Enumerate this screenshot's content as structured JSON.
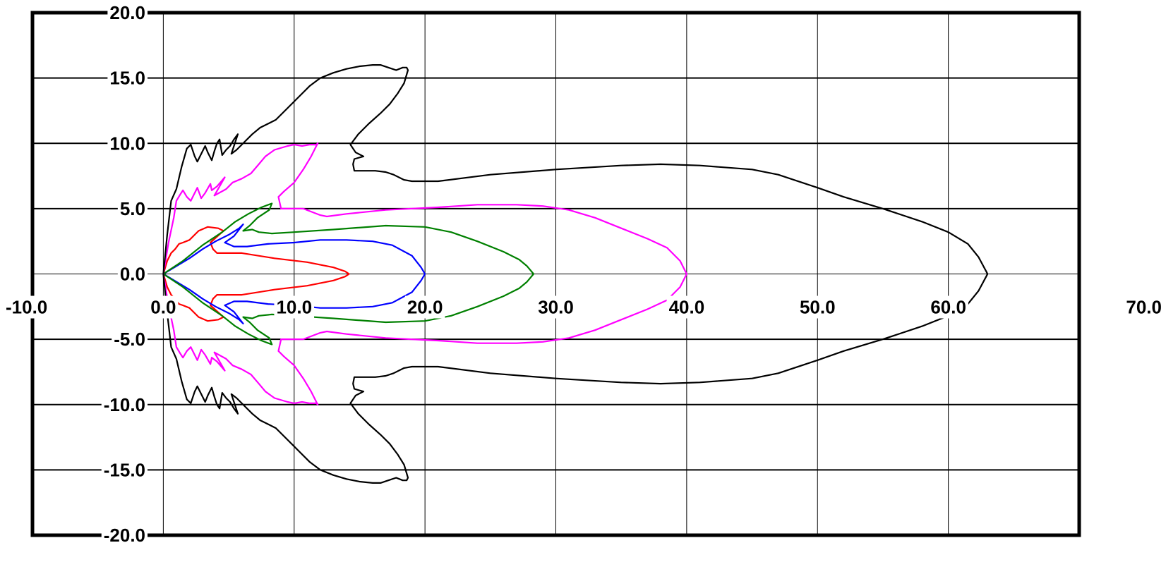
{
  "chart_data": {
    "type": "line",
    "title": "",
    "xlabel": "",
    "ylabel": "",
    "xlim": [
      -10,
      70
    ],
    "ylim": [
      -20,
      20
    ],
    "grid": true,
    "x_ticks": [
      -10,
      0,
      10,
      20,
      30,
      40,
      50,
      60,
      70
    ],
    "y_ticks": [
      -20,
      -15,
      -10,
      -5,
      0,
      5,
      10,
      15,
      20
    ],
    "x_tick_labels": [
      "-10.0",
      "0.0",
      "10.0",
      "20.0",
      "30.0",
      "40.0",
      "50.0",
      "60.0",
      "70.0"
    ],
    "y_tick_labels": [
      "-20.0",
      "-15.0",
      "-10.0",
      "-5.0",
      "0.0",
      "5.0",
      "10.0",
      "15.0",
      "20.0"
    ],
    "series": [
      {
        "color": "#ff0000",
        "points": [
          [
            0,
            0
          ],
          [
            0.3,
            1.0
          ],
          [
            0.6,
            1.6
          ],
          [
            0.9,
            1.9
          ],
          [
            1.2,
            2.3
          ],
          [
            1.5,
            2.4
          ],
          [
            2,
            2.6
          ],
          [
            2.7,
            3.3
          ],
          [
            3.4,
            3.6
          ],
          [
            4.2,
            3.5
          ],
          [
            4.6,
            3.3
          ],
          [
            3.6,
            2.4
          ],
          [
            3.8,
            1.9
          ],
          [
            4.1,
            1.6
          ],
          [
            6,
            1.6
          ],
          [
            8.5,
            1.2
          ],
          [
            11,
            0.9
          ],
          [
            13,
            0.5
          ],
          [
            13.9,
            0.2
          ],
          [
            14.2,
            0
          ]
        ]
      },
      {
        "color": "#0000ff",
        "points": [
          [
            0,
            0
          ],
          [
            1,
            0.6
          ],
          [
            2,
            1.2
          ],
          [
            3,
            1.9
          ],
          [
            4,
            2.5
          ],
          [
            5,
            3.0
          ],
          [
            5.8,
            3.5
          ],
          [
            6.1,
            3.8
          ],
          [
            5.4,
            2.9
          ],
          [
            4.7,
            2.4
          ],
          [
            5.4,
            2.1
          ],
          [
            6.4,
            2.1
          ],
          [
            8,
            2.3
          ],
          [
            10,
            2.4
          ],
          [
            12,
            2.6
          ],
          [
            14,
            2.6
          ],
          [
            16,
            2.5
          ],
          [
            17.5,
            2.2
          ],
          [
            19,
            1.4
          ],
          [
            19.7,
            0.5
          ],
          [
            20,
            0
          ]
        ]
      },
      {
        "color": "#008000",
        "points": [
          [
            0,
            0
          ],
          [
            1.5,
            1.0
          ],
          [
            3,
            2.2
          ],
          [
            4.5,
            3.2
          ],
          [
            5.5,
            4.0
          ],
          [
            6.5,
            4.6
          ],
          [
            7.5,
            5.1
          ],
          [
            8.3,
            5.4
          ],
          [
            8.1,
            4.9
          ],
          [
            7.2,
            4.3
          ],
          [
            6.6,
            3.7
          ],
          [
            6.1,
            3.3
          ],
          [
            6.8,
            3.4
          ],
          [
            7.3,
            3.2
          ],
          [
            8.3,
            3.1
          ],
          [
            10,
            3.2
          ],
          [
            13,
            3.4
          ],
          [
            17,
            3.7
          ],
          [
            20,
            3.6
          ],
          [
            22,
            3.2
          ],
          [
            24,
            2.5
          ],
          [
            26,
            1.7
          ],
          [
            27.2,
            1.1
          ],
          [
            27.8,
            0.6
          ],
          [
            28.3,
            0
          ]
        ]
      },
      {
        "color": "#ff00ff",
        "points": [
          [
            0,
            0
          ],
          [
            0.4,
            2.4
          ],
          [
            0.8,
            4.3
          ],
          [
            1,
            5.6
          ],
          [
            1.3,
            6.1
          ],
          [
            1.5,
            6.4
          ],
          [
            1.8,
            5.9
          ],
          [
            2.1,
            5.6
          ],
          [
            2.4,
            6.2
          ],
          [
            2.6,
            6.6
          ],
          [
            2.9,
            5.8
          ],
          [
            3.2,
            6.2
          ],
          [
            3.6,
            6.9
          ],
          [
            3.7,
            6.4
          ],
          [
            4.1,
            6.7
          ],
          [
            4.7,
            7.4
          ],
          [
            3.9,
            6.0
          ],
          [
            4.8,
            6.5
          ],
          [
            5.3,
            7.0
          ],
          [
            6,
            7.3
          ],
          [
            6.7,
            7.7
          ],
          [
            7.3,
            8.4
          ],
          [
            7.8,
            9.0
          ],
          [
            8.5,
            9.5
          ],
          [
            9.5,
            9.8
          ],
          [
            10,
            9.9
          ],
          [
            10.6,
            9.8
          ],
          [
            11.2,
            9.9
          ],
          [
            11.7,
            9.9
          ],
          [
            11.8,
            10.0
          ],
          [
            11.3,
            9.0
          ],
          [
            10.7,
            8.0
          ],
          [
            10,
            7.0
          ],
          [
            9.2,
            6.3
          ],
          [
            8.8,
            5.9
          ],
          [
            9,
            5.0
          ],
          [
            9.8,
            5.0
          ],
          [
            10.7,
            5.0
          ],
          [
            12,
            4.5
          ],
          [
            12.5,
            4.4
          ],
          [
            14,
            4.6
          ],
          [
            17,
            4.9
          ],
          [
            21,
            5.1
          ],
          [
            24,
            5.3
          ],
          [
            27,
            5.3
          ],
          [
            29,
            5.2
          ],
          [
            31,
            4.9
          ],
          [
            33,
            4.3
          ],
          [
            35,
            3.5
          ],
          [
            37,
            2.7
          ],
          [
            38.5,
            2.0
          ],
          [
            39.5,
            1.0
          ],
          [
            40,
            0
          ]
        ]
      },
      {
        "color": "#000000",
        "points": [
          [
            0,
            0
          ],
          [
            0.3,
            3.0
          ],
          [
            0.6,
            5.6
          ],
          [
            1,
            6.5
          ],
          [
            1.4,
            8.2
          ],
          [
            1.8,
            9.6
          ],
          [
            2.1,
            9.9
          ],
          [
            2.4,
            9.0
          ],
          [
            2.6,
            8.6
          ],
          [
            3,
            9.4
          ],
          [
            3.2,
            9.8
          ],
          [
            3.4,
            9.3
          ],
          [
            3.7,
            8.7
          ],
          [
            3.9,
            9.4
          ],
          [
            4.1,
            10.0
          ],
          [
            4.3,
            10.3
          ],
          [
            4.5,
            9.1
          ],
          [
            4.8,
            9.5
          ],
          [
            5.1,
            9.8
          ],
          [
            5.4,
            10.3
          ],
          [
            5.7,
            10.7
          ],
          [
            5.2,
            9.2
          ],
          [
            5.6,
            9.5
          ],
          [
            6.2,
            10.1
          ],
          [
            6.8,
            10.7
          ],
          [
            7.4,
            11.2
          ],
          [
            8,
            11.5
          ],
          [
            8.6,
            11.8
          ],
          [
            9.4,
            12.6
          ],
          [
            10.3,
            13.5
          ],
          [
            11.2,
            14.4
          ],
          [
            12,
            15.0
          ],
          [
            13,
            15.4
          ],
          [
            14,
            15.7
          ],
          [
            15,
            15.9
          ],
          [
            16,
            16.0
          ],
          [
            16.6,
            16.0
          ],
          [
            17.2,
            15.8
          ],
          [
            17.8,
            15.6
          ],
          [
            18.3,
            15.8
          ],
          [
            18.6,
            15.8
          ],
          [
            18.7,
            15.6
          ],
          [
            18.4,
            14.6
          ],
          [
            17.9,
            13.8
          ],
          [
            17.3,
            13.0
          ],
          [
            16.6,
            12.3
          ],
          [
            15.7,
            11.5
          ],
          [
            14.9,
            10.7
          ],
          [
            14.3,
            9.9
          ],
          [
            14.7,
            9.3
          ],
          [
            15.3,
            9.0
          ],
          [
            14.6,
            8.8
          ],
          [
            14.5,
            8.4
          ],
          [
            14.6,
            7.9
          ],
          [
            15.4,
            7.9
          ],
          [
            16.2,
            7.9
          ],
          [
            17,
            7.8
          ],
          [
            17.6,
            7.6
          ],
          [
            18.4,
            7.2
          ],
          [
            19,
            7.1
          ],
          [
            21,
            7.1
          ],
          [
            25,
            7.6
          ],
          [
            30,
            8.0
          ],
          [
            35,
            8.3
          ],
          [
            38,
            8.4
          ],
          [
            41,
            8.3
          ],
          [
            45,
            8.0
          ],
          [
            47,
            7.6
          ],
          [
            50,
            6.6
          ],
          [
            52,
            5.9
          ],
          [
            55,
            5.0
          ],
          [
            58,
            4.0
          ],
          [
            60,
            3.2
          ],
          [
            61.5,
            2.3
          ],
          [
            62.3,
            1.3
          ],
          [
            63,
            0
          ]
        ]
      }
    ]
  }
}
